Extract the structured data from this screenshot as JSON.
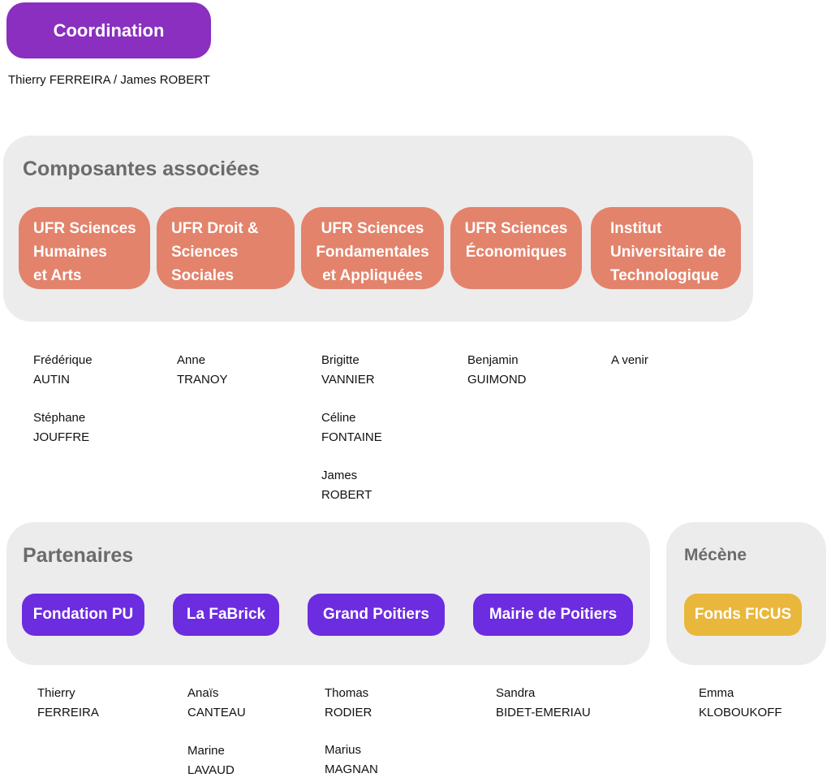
{
  "coordination": {
    "label": "Coordination",
    "names": "Thierry FERREIRA / James ROBERT"
  },
  "composantes": {
    "title": "Composantes associées",
    "units": [
      {
        "lines": [
          "UFR Sciences",
          "Humaines",
          "et Arts"
        ]
      },
      {
        "lines": [
          "UFR Droit &",
          "Sciences",
          "Sociales"
        ]
      },
      {
        "lines": [
          "UFR Sciences",
          "Fondamentales",
          "et Appliquées"
        ]
      },
      {
        "lines": [
          "UFR Sciences",
          "Économiques"
        ]
      },
      {
        "lines": [
          "Institut",
          "Universitaire de",
          "Technologique"
        ]
      }
    ],
    "people": [
      [
        {
          "first": "Frédérique",
          "last": "AUTIN"
        },
        {
          "first": "Stéphane",
          "last": "JOUFFRE"
        }
      ],
      [
        {
          "first": "Anne",
          "last": "TRANOY"
        }
      ],
      [
        {
          "first": "Brigitte",
          "last": "VANNIER"
        },
        {
          "first": "Céline",
          "last": "FONTAINE"
        },
        {
          "first": "James",
          "last": "ROBERT"
        }
      ],
      [
        {
          "first": "Benjamin",
          "last": "GUIMOND"
        }
      ],
      [
        {
          "first": "A venir",
          "last": ""
        }
      ]
    ]
  },
  "partenaires": {
    "title": "Partenaires",
    "items": [
      "Fondation PU",
      "La FaBrick",
      "Grand Poitiers",
      "Mairie de Poitiers"
    ],
    "people": [
      [
        {
          "first": "Thierry",
          "last": "FERREIRA"
        }
      ],
      [
        {
          "first": "Anaïs",
          "last": "CANTEAU"
        },
        {
          "first": "Marine",
          "last": "LAVAUD"
        }
      ],
      [
        {
          "first": "Thomas",
          "last": "RODIER"
        },
        {
          "first": "Marius",
          "last": "MAGNAN"
        }
      ],
      [
        {
          "first": "Sandra",
          "last": "BIDET-EMERIAU"
        }
      ]
    ]
  },
  "mecene": {
    "title": "Mécène",
    "item": "Fonds FICUS",
    "people": [
      {
        "first": "Emma",
        "last": "KLOBOUKOFF"
      }
    ]
  },
  "colors": {
    "coordination": "#8a2fbf",
    "composante": "#e3836b",
    "partenaire": "#6c2ce0",
    "mecene": "#e9b73c",
    "panel": "#ececec"
  }
}
